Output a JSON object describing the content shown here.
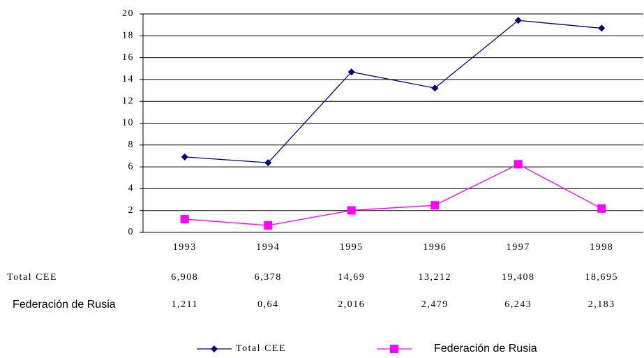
{
  "chart_data": {
    "type": "line",
    "categories": [
      "1993",
      "1994",
      "1995",
      "1996",
      "1997",
      "1998"
    ],
    "series": [
      {
        "name": "Total CEE",
        "color": "#000080",
        "marker": "diamond",
        "values": [
          6.908,
          6.378,
          14.69,
          13.212,
          19.408,
          18.695
        ],
        "value_labels": [
          "6,908",
          "6,378",
          "14,69",
          "13,212",
          "19,408",
          "18,695"
        ]
      },
      {
        "name": "Federación de Rusia",
        "color": "#ff00ff",
        "marker": "square",
        "values": [
          1.211,
          0.64,
          2.016,
          2.479,
          6.243,
          2.183
        ],
        "value_labels": [
          "1,211",
          "0,64",
          "2,016",
          "2,479",
          "6,243",
          "2,183"
        ]
      }
    ],
    "ylim": [
      0,
      20
    ],
    "yticks": [
      0,
      2,
      4,
      6,
      8,
      10,
      12,
      14,
      16,
      18,
      20
    ],
    "grid": true
  }
}
